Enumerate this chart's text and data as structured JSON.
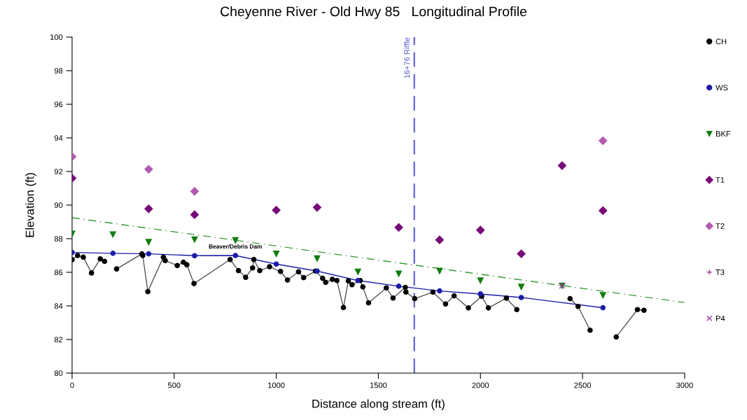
{
  "chart_data": {
    "type": "line",
    "title": "Cheyenne River - Old Hwy 85   Longitudinal Profile",
    "xlabel": "Distance along stream (ft)",
    "ylabel": "Elevation (ft)",
    "xlim": [
      0,
      3000
    ],
    "xticks": [
      0,
      500,
      1000,
      1500,
      2000,
      2500,
      3000
    ],
    "ylim": [
      80,
      100
    ],
    "yticks": [
      80,
      82,
      84,
      86,
      88,
      90,
      92,
      94,
      96,
      98,
      100
    ],
    "grid": false,
    "legend": "right",
    "annotations": [
      {
        "text": "Beaver/Debris Dam",
        "x": 800,
        "y": 87.0
      }
    ],
    "ref_lines": [
      {
        "axis": "x",
        "value": 1676,
        "label": "16+76 Riffle",
        "color": "#5a5ad2",
        "line_style": "dashed"
      }
    ],
    "series": [
      {
        "name": "CH",
        "color": "#000000",
        "marker": "circle",
        "x": [
          0,
          27,
          55,
          95,
          138,
          159,
          180,
          218,
          342,
          346,
          371,
          447,
          456,
          515,
          545,
          562,
          597,
          774,
          815,
          850,
          884,
          890,
          919,
          967,
          1021,
          1055,
          1109,
          1134,
          1192,
          1227,
          1242,
          1275,
          1297,
          1329,
          1353,
          1371,
          1411,
          1424,
          1452,
          1539,
          1572,
          1632,
          1635,
          1678,
          1767,
          1829,
          1871,
          1941,
          2006,
          2039,
          2127,
          2178,
          2300,
          2439,
          2478,
          2537,
          2600,
          2665,
          2769,
          2801
        ],
        "values": [
          86.75,
          87.0,
          86.9,
          85.96,
          86.8,
          86.65,
          null,
          86.2,
          87.1,
          87.0,
          84.85,
          86.9,
          86.7,
          86.4,
          86.6,
          86.45,
          85.33,
          86.76,
          86.1,
          85.7,
          86.26,
          86.76,
          86.1,
          86.33,
          86.05,
          85.54,
          86.03,
          85.68,
          86.07,
          85.64,
          85.4,
          85.58,
          85.51,
          83.9,
          85.49,
          85.26,
          85.51,
          85.13,
          84.18,
          85.07,
          84.47,
          85.1,
          84.82,
          84.43,
          84.82,
          84.11,
          84.6,
          83.88,
          84.57,
          83.88,
          84.46,
          83.78,
          null,
          84.43,
          83.97,
          82.55,
          null,
          82.15,
          83.78,
          83.74
        ]
      },
      {
        "name": "WS",
        "color": "#1c1ca8",
        "marker": "circle",
        "x": [
          0,
          200,
          375,
          600,
          800,
          1000,
          1200,
          1400,
          1600,
          1800,
          2000,
          2200,
          2600
        ],
        "values": [
          87.18,
          87.13,
          87.1,
          86.99,
          87.0,
          86.49,
          86.07,
          85.51,
          85.17,
          84.89,
          84.71,
          84.5,
          83.89
        ]
      },
      {
        "name": "BKF",
        "type": "scatter",
        "color": "#0f7d0f",
        "marker": "triangle",
        "x": [
          0,
          200,
          375,
          600,
          800,
          1000,
          1200,
          1400,
          1600,
          1800,
          2000,
          2200,
          2400,
          2600
        ],
        "values": [
          88.29,
          88.25,
          87.8,
          87.95,
          87.9,
          87.1,
          86.82,
          86.03,
          85.92,
          86.08,
          85.51,
          85.13,
          85.2,
          84.63
        ]
      },
      {
        "name": "T1",
        "type": "scatter",
        "color": "#7a0a7a",
        "marker": "diamond",
        "x": [
          0,
          375,
          600,
          1000,
          1200,
          1600,
          1800,
          2000,
          2200,
          2400,
          2600
        ],
        "values": [
          91.6,
          89.78,
          89.43,
          89.7,
          89.86,
          88.67,
          87.93,
          88.51,
          87.1,
          92.35,
          89.67
        ]
      },
      {
        "name": "T2",
        "type": "scatter",
        "color": "#b25ab2",
        "marker": "diamond",
        "x": [
          0,
          375,
          600,
          2600
        ],
        "values": [
          92.88,
          92.13,
          90.82,
          93.83
        ]
      },
      {
        "name": "T3",
        "type": "scatter",
        "color": "#a040a0",
        "marker": "cross"
      },
      {
        "name": "P4",
        "type": "scatter",
        "color": "#a040a0",
        "marker": "x",
        "x": [
          2400
        ],
        "values": [
          85.2
        ]
      },
      {
        "color": "#3a9a3a",
        "marker": "none",
        "line_style": "dashed",
        "x": [
          0,
          3000
        ],
        "values": [
          89.25,
          84.2
        ]
      }
    ]
  }
}
